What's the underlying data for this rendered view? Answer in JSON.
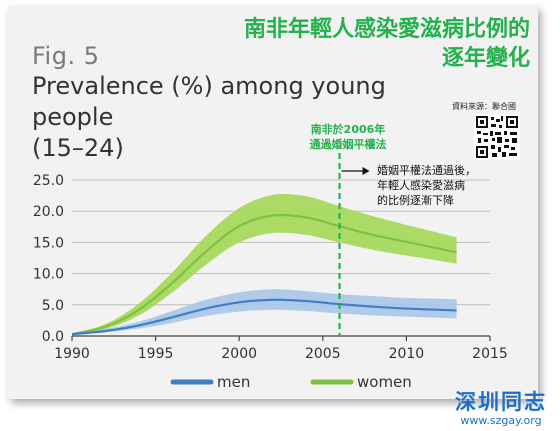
{
  "header": {
    "cn_title_line1": "南非年輕人感染愛滋病比例的",
    "cn_title_line2": "逐年變化",
    "fig_label": "Fig. 5",
    "title_line1": "Prevalence (%) among young people",
    "title_line2": "(15–24)",
    "source": "資料來源：聯合國"
  },
  "annotations": {
    "marker_line1": "南非於2006年",
    "marker_line2": "通過婚姻平權法",
    "note_line1": "婚姻平權法通過後，",
    "note_line2": "年輕人感染愛滋病",
    "note_line3": "的比例逐漸下降"
  },
  "watermark": {
    "cn": "深圳同志",
    "url": "www.szgay.org"
  },
  "colors": {
    "men_line": "#3f7fc4",
    "men_band": "#a9c6e8",
    "women_line": "#7cc142",
    "women_band": "#a6d95c",
    "marker": "#22b14c",
    "accent_title": "#22b14c"
  },
  "chart_data": {
    "type": "area",
    "title": "Prevalence (%) among young people (15–24)",
    "xlabel": "",
    "ylabel": "",
    "xlim": [
      1990,
      2015
    ],
    "ylim": [
      0,
      25
    ],
    "xticks": [
      1990,
      1995,
      2000,
      2005,
      2010,
      2015
    ],
    "yticks": [
      "0.0",
      "5.0",
      "10.0",
      "15.0",
      "20.0",
      "25.0"
    ],
    "grid": true,
    "legend_position": "bottom",
    "marker_year": 2006,
    "series": [
      {
        "name": "men",
        "x": [
          1990,
          1992,
          1994,
          1996,
          1998,
          2000,
          2002,
          2004,
          2006,
          2008,
          2010,
          2013
        ],
        "values": [
          0.3,
          0.8,
          1.7,
          3.0,
          4.4,
          5.4,
          5.8,
          5.6,
          5.1,
          4.7,
          4.4,
          4.1
        ],
        "lower": [
          0.2,
          0.6,
          1.2,
          2.1,
          3.2,
          3.9,
          4.2,
          4.0,
          3.6,
          3.3,
          3.1,
          2.8
        ],
        "upper": [
          0.4,
          1.1,
          2.3,
          4.0,
          5.8,
          7.0,
          7.5,
          7.2,
          6.7,
          6.4,
          6.1,
          5.9
        ]
      },
      {
        "name": "women",
        "x": [
          1990,
          1992,
          1994,
          1996,
          1998,
          2000,
          2002,
          2004,
          2006,
          2008,
          2010,
          2013
        ],
        "values": [
          0.3,
          1.5,
          4.2,
          8.5,
          13.5,
          17.6,
          19.3,
          19.0,
          17.6,
          16.2,
          15.1,
          13.4
        ],
        "lower": [
          0.2,
          1.1,
          3.3,
          7.0,
          11.4,
          15.0,
          16.5,
          16.2,
          15.0,
          13.8,
          12.9,
          11.6
        ],
        "upper": [
          0.4,
          1.9,
          5.2,
          10.2,
          16.0,
          20.5,
          22.6,
          22.4,
          20.8,
          19.2,
          17.8,
          15.8
        ]
      }
    ]
  }
}
